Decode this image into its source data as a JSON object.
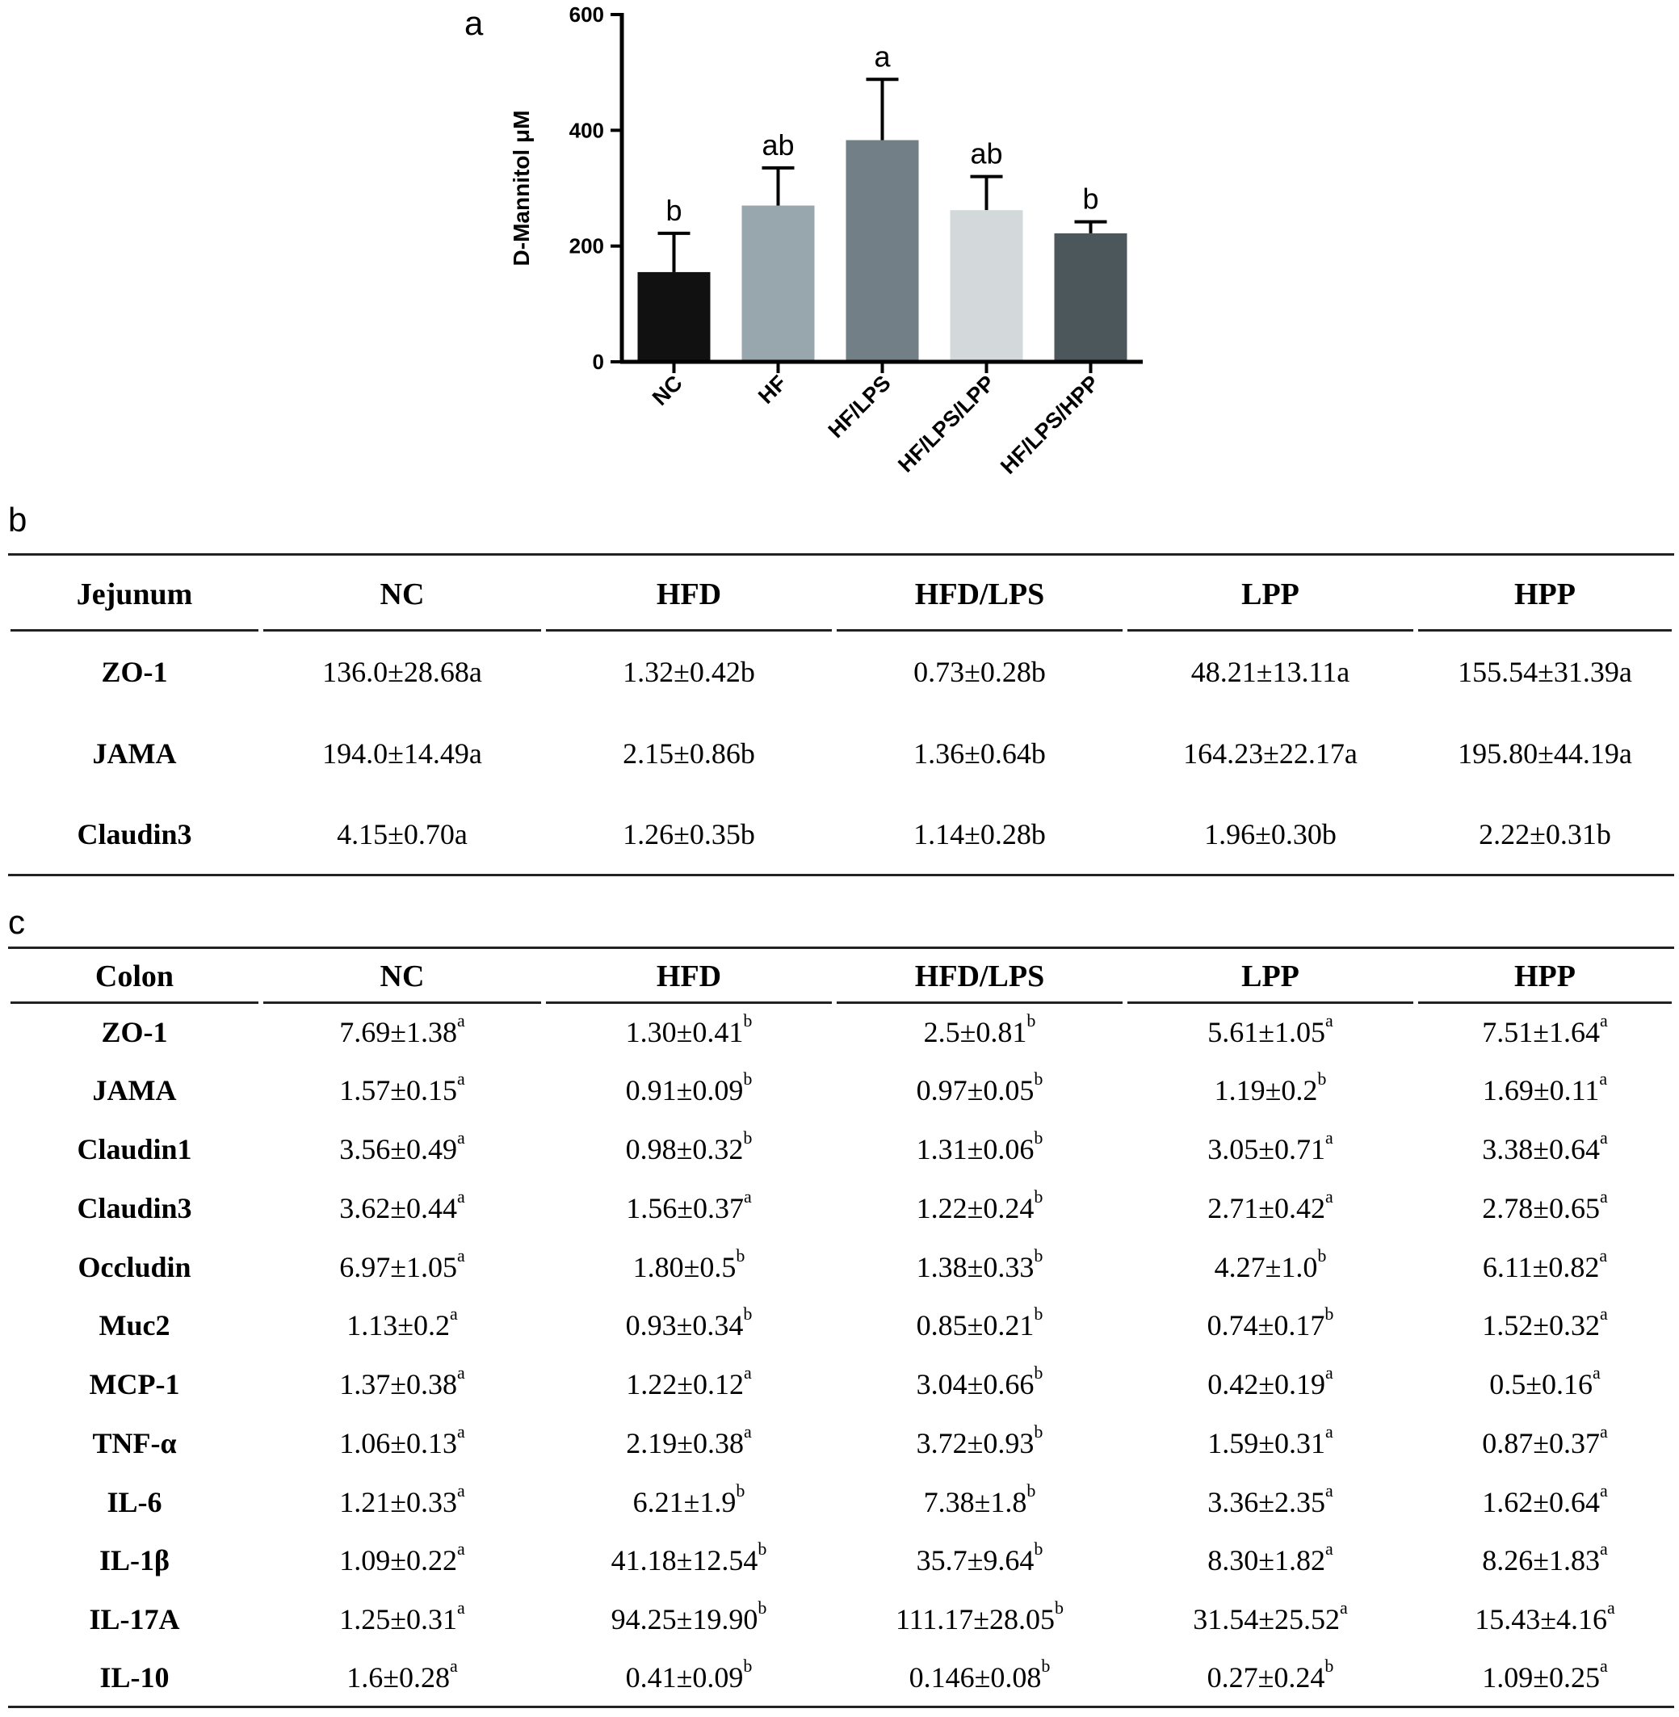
{
  "panels": {
    "a": "a",
    "b": "b",
    "c": "c"
  },
  "chart_data": {
    "type": "bar",
    "ylabel": "D-Mannitol μM",
    "ylim": [
      0,
      600
    ],
    "yticks": [
      "0",
      "200",
      "400",
      "600"
    ],
    "categories": [
      "NC",
      "HF",
      "HF/LPS",
      "HF/LPS/LPP",
      "HF/LPS/HPP"
    ],
    "values": [
      155,
      270,
      383,
      262,
      222
    ],
    "errors": [
      67,
      65,
      105,
      58,
      20
    ],
    "letters": [
      "b",
      "ab",
      "a",
      "ab",
      "b"
    ],
    "colors": [
      "#111111",
      "#98a6ad",
      "#727f86",
      "#d3d9db",
      "#4c575c"
    ]
  },
  "jejunum": {
    "headers": [
      "Jejunum",
      "NC",
      "HFD",
      "HFD/LPS",
      "LPP",
      "HPP"
    ],
    "rows": [
      {
        "name": "ZO-1",
        "cells": [
          "136.0±28.68a",
          "1.32±0.42b",
          "0.73±0.28b",
          "48.21±13.11a",
          "155.54±31.39a"
        ]
      },
      {
        "name": "JAMA",
        "cells": [
          "194.0±14.49a",
          "2.15±0.86b",
          "1.36±0.64b",
          "164.23±22.17a",
          "195.80±44.19a"
        ]
      },
      {
        "name": "Claudin3",
        "cells": [
          "4.15±0.70a",
          "1.26±0.35b",
          "1.14±0.28b",
          "1.96±0.30b",
          "2.22±0.31b"
        ]
      }
    ]
  },
  "colon": {
    "headers": [
      "Colon",
      "NC",
      "HFD",
      "HFD/LPS",
      "LPP",
      "HPP"
    ],
    "rows": [
      {
        "name": "ZO-1",
        "cells": [
          [
            "7.69±1.38",
            "a"
          ],
          [
            "1.30±0.41",
            "b"
          ],
          [
            "2.5±0.81",
            "b"
          ],
          [
            "5.61±1.05",
            "a"
          ],
          [
            "7.51±1.64",
            "a"
          ]
        ]
      },
      {
        "name": "JAMA",
        "cells": [
          [
            "1.57±0.15",
            "a"
          ],
          [
            "0.91±0.09",
            "b"
          ],
          [
            "0.97±0.05",
            "b"
          ],
          [
            "1.19±0.2",
            "b"
          ],
          [
            "1.69±0.11",
            "a"
          ]
        ]
      },
      {
        "name": "Claudin1",
        "cells": [
          [
            "3.56±0.49",
            "a"
          ],
          [
            "0.98±0.32",
            "b"
          ],
          [
            "1.31±0.06",
            "b"
          ],
          [
            "3.05±0.71",
            "a"
          ],
          [
            "3.38±0.64",
            "a"
          ]
        ]
      },
      {
        "name": "Claudin3",
        "cells": [
          [
            "3.62±0.44",
            "a"
          ],
          [
            "1.56±0.37",
            "a"
          ],
          [
            "1.22±0.24",
            "b"
          ],
          [
            "2.71±0.42",
            "a"
          ],
          [
            "2.78±0.65",
            "a"
          ]
        ]
      },
      {
        "name": "Occludin",
        "cells": [
          [
            "6.97±1.05",
            "a"
          ],
          [
            "1.80±0.5",
            "b"
          ],
          [
            "1.38±0.33",
            "b"
          ],
          [
            "4.27±1.0",
            "b"
          ],
          [
            "6.11±0.82",
            "a"
          ]
        ]
      },
      {
        "name": "Muc2",
        "cells": [
          [
            "1.13±0.2",
            "a"
          ],
          [
            "0.93±0.34",
            "b"
          ],
          [
            "0.85±0.21",
            "b"
          ],
          [
            "0.74±0.17",
            "b"
          ],
          [
            "1.52±0.32",
            "a"
          ]
        ]
      },
      {
        "name": "MCP-1",
        "cells": [
          [
            "1.37±0.38",
            "a"
          ],
          [
            "1.22±0.12",
            "a"
          ],
          [
            "3.04±0.66",
            "b"
          ],
          [
            "0.42±0.19",
            "a"
          ],
          [
            "0.5±0.16",
            "a"
          ]
        ]
      },
      {
        "name": "TNF-α",
        "cells": [
          [
            "1.06±0.13",
            "a"
          ],
          [
            "2.19±0.38",
            "a"
          ],
          [
            "3.72±0.93",
            "b"
          ],
          [
            "1.59±0.31",
            "a"
          ],
          [
            "0.87±0.37",
            "a"
          ]
        ]
      },
      {
        "name": "IL-6",
        "cells": [
          [
            "1.21±0.33",
            "a"
          ],
          [
            "6.21±1.9",
            "b"
          ],
          [
            "7.38±1.8",
            "b"
          ],
          [
            "3.36±2.35",
            "a"
          ],
          [
            "1.62±0.64",
            "a"
          ]
        ]
      },
      {
        "name": "IL-1β",
        "cells": [
          [
            "1.09±0.22",
            "a"
          ],
          [
            "41.18±12.54",
            "b"
          ],
          [
            "35.7±9.64",
            "b"
          ],
          [
            "8.30±1.82",
            "a"
          ],
          [
            "8.26±1.83",
            "a"
          ]
        ]
      },
      {
        "name": "IL-17A",
        "cells": [
          [
            "1.25±0.31",
            "a"
          ],
          [
            "94.25±19.90",
            "b"
          ],
          [
            "111.17±28.05",
            "b"
          ],
          [
            "31.54±25.52",
            "a"
          ],
          [
            "15.43±4.16",
            "a"
          ]
        ]
      },
      {
        "name": "IL-10",
        "cells": [
          [
            "1.6±0.28",
            "a"
          ],
          [
            "0.41±0.09",
            "b"
          ],
          [
            "0.146±0.08",
            "b"
          ],
          [
            "0.27±0.24",
            "b"
          ],
          [
            "1.09±0.25",
            "a"
          ]
        ]
      }
    ]
  }
}
